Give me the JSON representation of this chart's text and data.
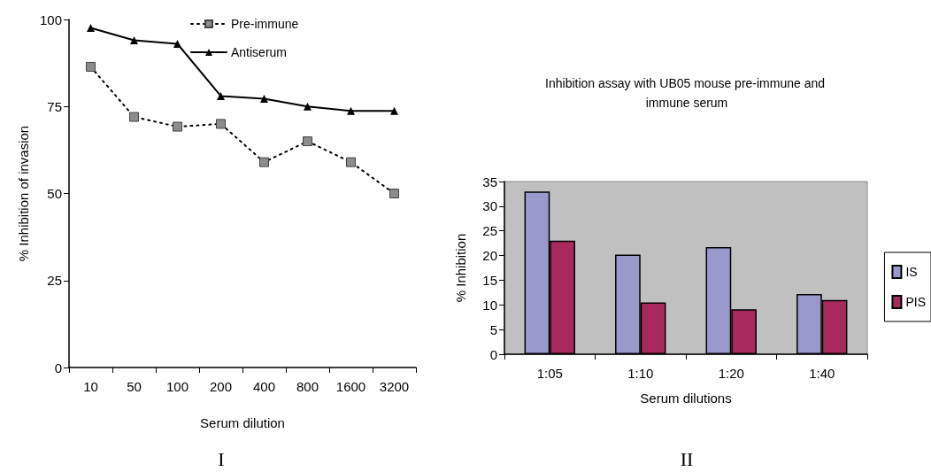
{
  "chart_data": [
    {
      "type": "line",
      "xlabel": "Serum dilution",
      "ylabel": "% Inhibition of invasion",
      "categories": [
        "10",
        "50",
        "100",
        "200",
        "400",
        "800",
        "1600",
        "3200"
      ],
      "series": [
        {
          "name": "Pre-immune",
          "color": "#8c8c8c",
          "line_style": "dotted",
          "marker": "square",
          "values": [
            86.4,
            72,
            69.2,
            70,
            59,
            65,
            59,
            50
          ]
        },
        {
          "name": "Antiserum",
          "color": "#000000",
          "line_style": "solid",
          "marker": "triangle",
          "values": [
            97.6,
            94,
            93,
            78,
            77.2,
            75,
            73.7,
            73.7
          ]
        }
      ],
      "ylim": [
        0,
        100
      ],
      "yticks": [
        0,
        25,
        50,
        75,
        100
      ],
      "grid": false,
      "legend": "top",
      "annotations": [
        "I"
      ]
    },
    {
      "type": "bar",
      "title": "Inhibition assay with UB05 mouse pre-immune and immune serum",
      "xlabel": "Serum dilutions",
      "ylabel": "% Inhibition",
      "categories": [
        "1:05",
        "1:10",
        "1:20",
        "1:40"
      ],
      "series": [
        {
          "name": "IS",
          "color": "#9999cc",
          "values": [
            33,
            20.2,
            21.7,
            12.2
          ]
        },
        {
          "name": "PIS",
          "color": "#a8295c",
          "values": [
            23,
            10.5,
            9.1,
            11
          ]
        }
      ],
      "ylim": [
        0,
        35
      ],
      "yticks": [
        0,
        5,
        10,
        15,
        20,
        25,
        30,
        35
      ],
      "grid": false,
      "legend": "right",
      "annotations": [
        "II"
      ]
    }
  ]
}
